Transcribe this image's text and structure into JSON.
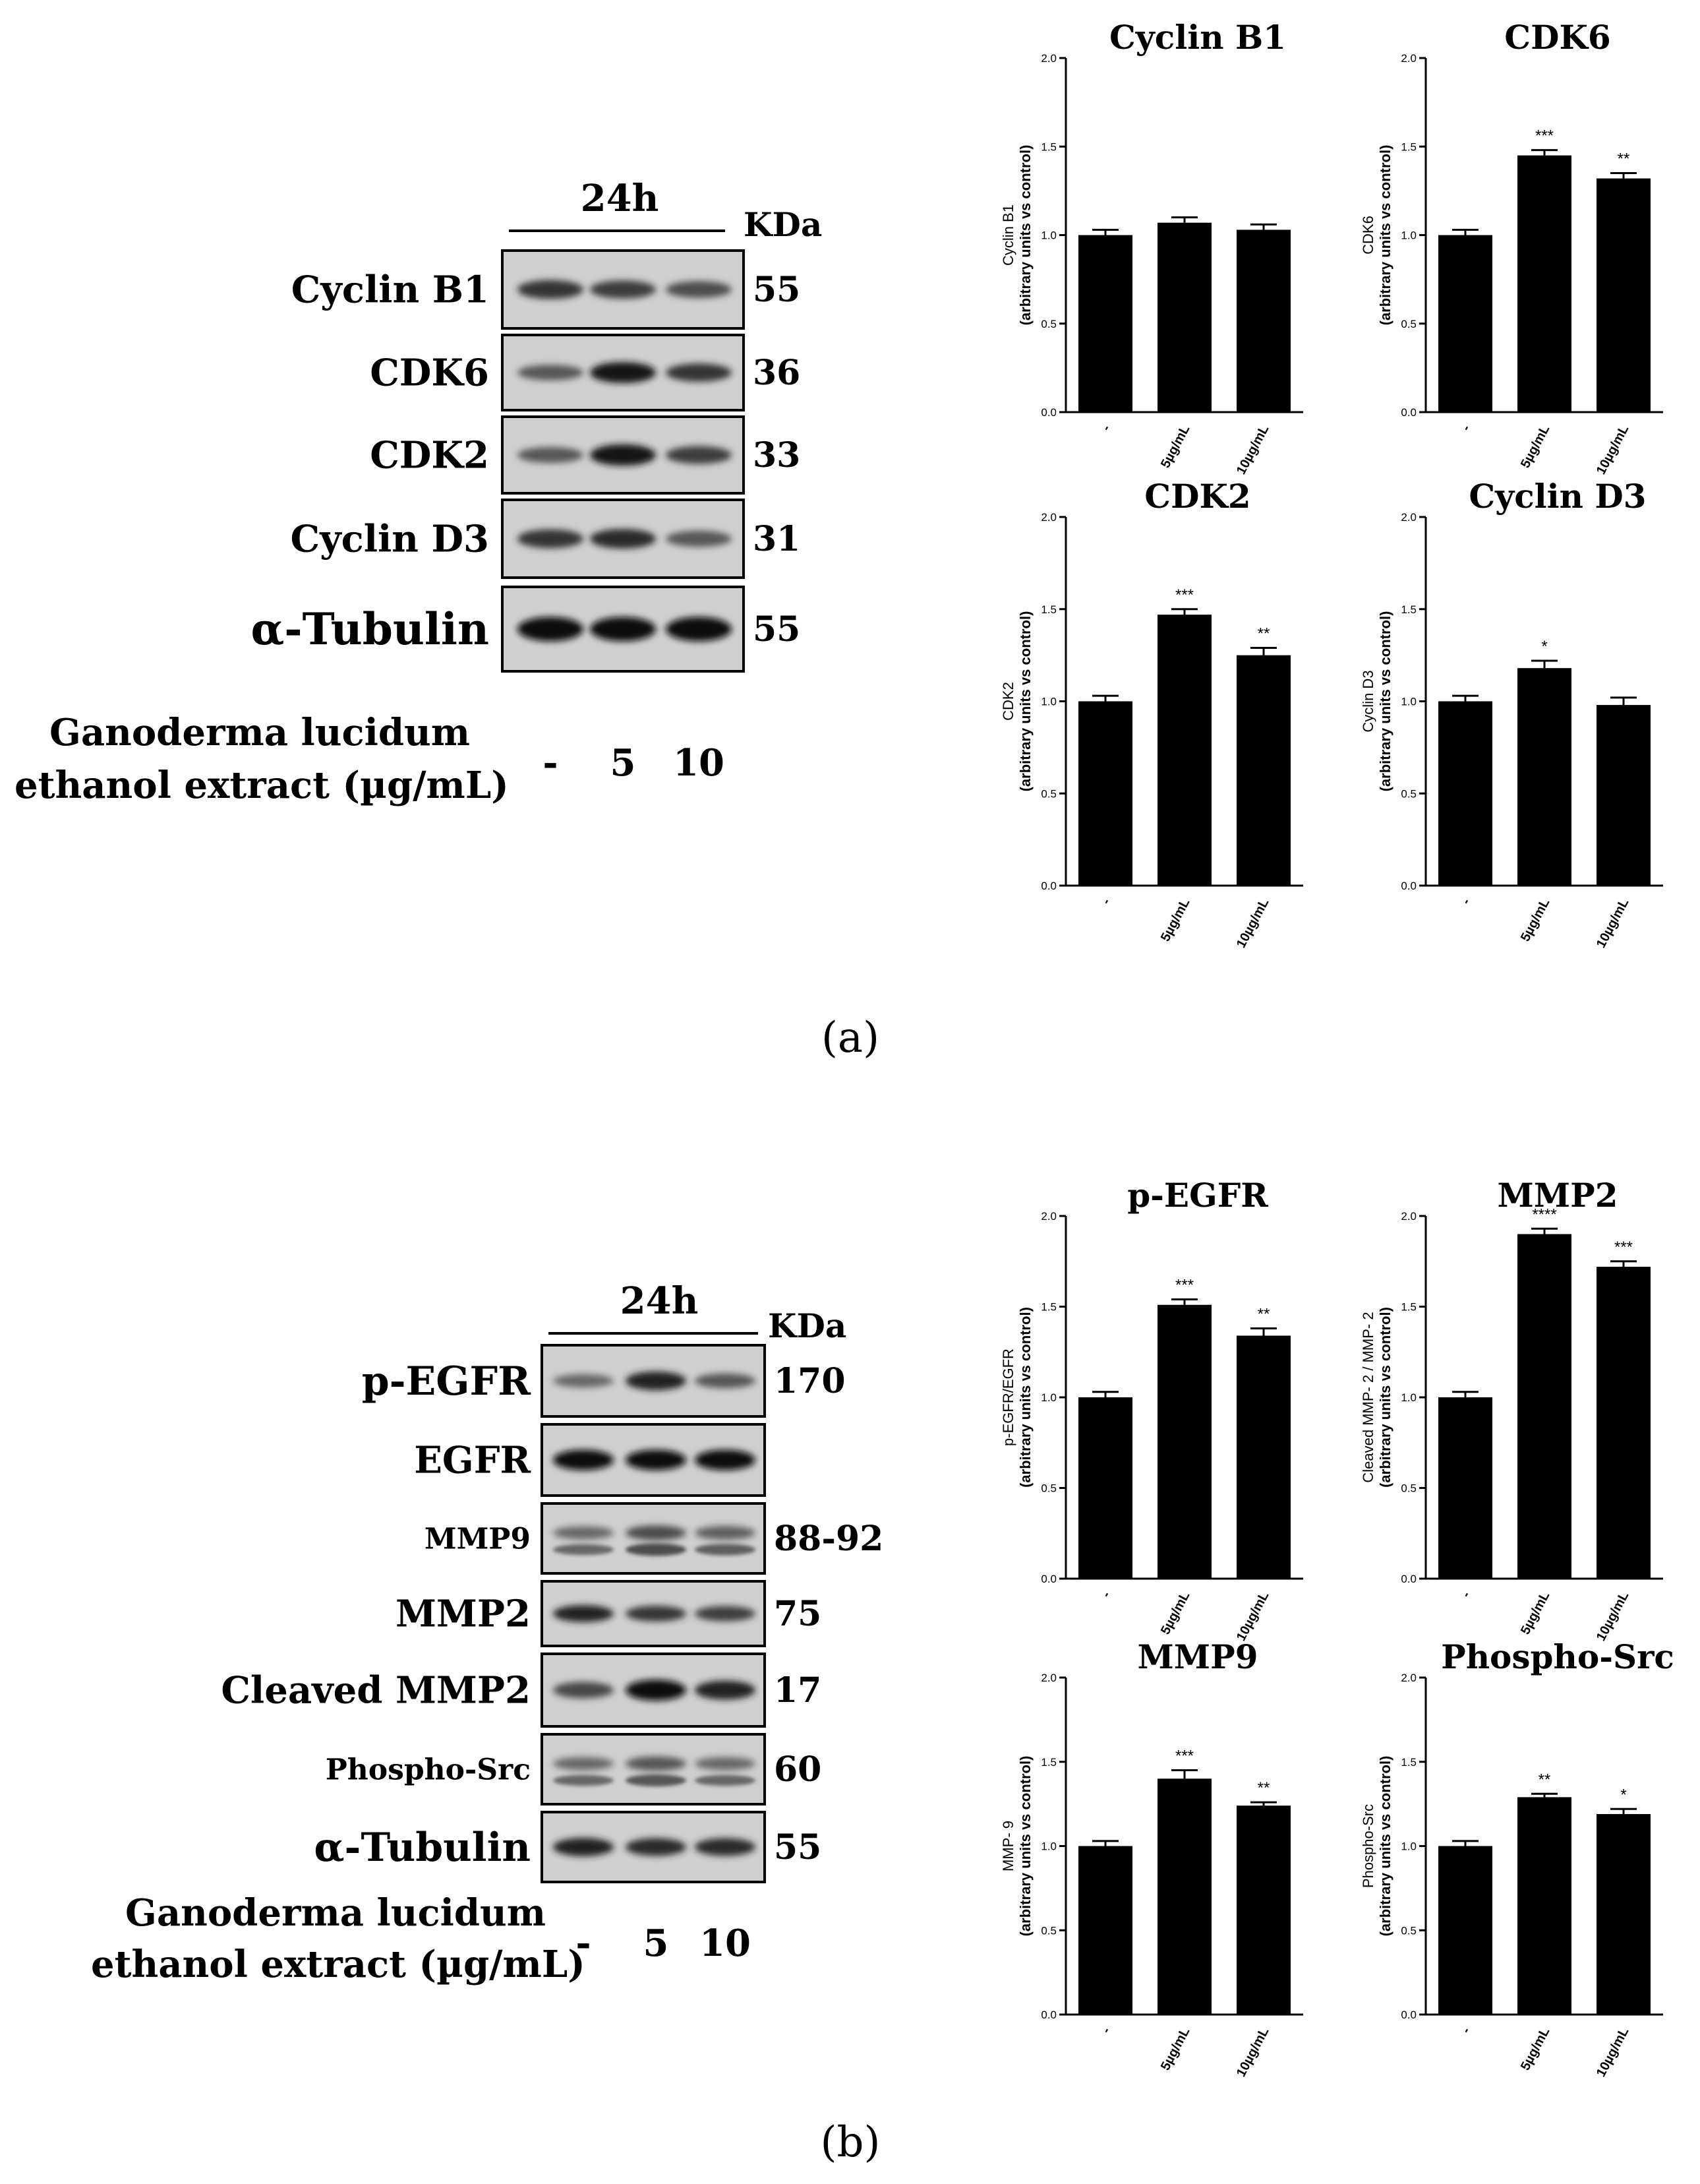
{
  "figure": {
    "panel_a_label": "(a)",
    "panel_b_label": "(b)"
  },
  "blot_a": {
    "time_label": "24h",
    "kda_label": "KDa",
    "treatment_label_line1": "Ganoderma lucidum",
    "treatment_label_line2": "ethanol extract (µg/mL)",
    "lanes": [
      "-",
      "5",
      "10"
    ],
    "rows": [
      {
        "label": "Cyclin B1",
        "kda": "55",
        "intensity": [
          0.75,
          0.7,
          0.6
        ],
        "double": false
      },
      {
        "label": "CDK6",
        "kda": "36",
        "intensity": [
          0.55,
          0.95,
          0.75
        ],
        "double": false
      },
      {
        "label": "CDK2",
        "kda": "33",
        "intensity": [
          0.55,
          0.95,
          0.7
        ],
        "double": false
      },
      {
        "label": "Cyclin D3",
        "kda": "31",
        "intensity": [
          0.75,
          0.8,
          0.55
        ],
        "double": false
      },
      {
        "label": "α-Tubulin",
        "kda": "55",
        "intensity": [
          1.0,
          1.0,
          1.0
        ],
        "double": false
      }
    ]
  },
  "blot_b": {
    "time_label": "24h",
    "kda_label": "KDa",
    "treatment_label_line1": "Ganoderma lucidum",
    "treatment_label_line2": "ethanol extract (µg/mL)",
    "lanes": [
      "-",
      "5",
      "10"
    ],
    "rows": [
      {
        "label": "p-EGFR",
        "kda": "170",
        "intensity": [
          0.45,
          0.85,
          0.55
        ],
        "double": false
      },
      {
        "label": "EGFR",
        "kda": "",
        "intensity": [
          1.0,
          1.0,
          1.0
        ],
        "double": false
      },
      {
        "label": "MMP9",
        "kda": "88-92",
        "intensity": [
          0.45,
          0.6,
          0.5
        ],
        "double": true
      },
      {
        "label": "MMP2",
        "kda": "75",
        "intensity": [
          0.85,
          0.75,
          0.7
        ],
        "double": false
      },
      {
        "label": "Cleaved MMP2",
        "kda": "17",
        "intensity": [
          0.65,
          1.0,
          0.85
        ],
        "double": false
      },
      {
        "label": "Phospho-Src",
        "kda": "60",
        "intensity": [
          0.45,
          0.55,
          0.45
        ],
        "double": true
      },
      {
        "label": "α-Tubulin",
        "kda": "55",
        "intensity": [
          0.85,
          0.8,
          0.8
        ],
        "double": false
      }
    ]
  },
  "chart_data": [
    {
      "type": "bar",
      "title": "Cyclin B1",
      "ylabel_line1": "Cyclin B1",
      "ylabel_line2": "(arbitrary units vs control)",
      "categories": [
        "-",
        "5µg/mL",
        "10µg/mL"
      ],
      "values": [
        1.0,
        1.07,
        1.03
      ],
      "errors": [
        0.03,
        0.03,
        0.03
      ],
      "significance": [
        "",
        "",
        ""
      ],
      "ylim": [
        0,
        2.0
      ],
      "yticks": [
        "0.0",
        "0.5",
        "1.0",
        "1.5",
        "2.0"
      ],
      "grid": false
    },
    {
      "type": "bar",
      "title": "CDK6",
      "ylabel_line1": "CDK6",
      "ylabel_line2": "(arbitrary units vs control)",
      "categories": [
        "-",
        "5µg/mL",
        "10µg/mL"
      ],
      "values": [
        1.0,
        1.45,
        1.32
      ],
      "errors": [
        0.03,
        0.03,
        0.03
      ],
      "significance": [
        "",
        "***",
        "**"
      ],
      "ylim": [
        0,
        2.0
      ],
      "yticks": [
        "0.0",
        "0.5",
        "1.0",
        "1.5",
        "2.0"
      ],
      "grid": false
    },
    {
      "type": "bar",
      "title": "CDK2",
      "ylabel_line1": "CDK2",
      "ylabel_line2": "(arbitrary units vs control)",
      "categories": [
        "-",
        "5µg/mL",
        "10µg/mL"
      ],
      "values": [
        1.0,
        1.47,
        1.25
      ],
      "errors": [
        0.03,
        0.03,
        0.04
      ],
      "significance": [
        "",
        "***",
        "**"
      ],
      "ylim": [
        0,
        2.0
      ],
      "yticks": [
        "0.0",
        "0.5",
        "1.0",
        "1.5",
        "2.0"
      ],
      "grid": false
    },
    {
      "type": "bar",
      "title": "Cyclin D3",
      "ylabel_line1": "Cyclin D3",
      "ylabel_line2": "(arbitrary units vs control)",
      "categories": [
        "-",
        "5µg/mL",
        "10µg/mL"
      ],
      "values": [
        1.0,
        1.18,
        0.98
      ],
      "errors": [
        0.03,
        0.04,
        0.04
      ],
      "significance": [
        "",
        "*",
        ""
      ],
      "ylim": [
        0,
        2.0
      ],
      "yticks": [
        "0.0",
        "0.5",
        "1.0",
        "1.5",
        "2.0"
      ],
      "grid": false
    },
    {
      "type": "bar",
      "title": "p-EGFR",
      "ylabel_line1": "p-EGFR/EGFR",
      "ylabel_line2": "(arbitrary units vs control)",
      "categories": [
        "-",
        "5µg/mL",
        "10µg/mL"
      ],
      "values": [
        1.0,
        1.51,
        1.34
      ],
      "errors": [
        0.03,
        0.03,
        0.04
      ],
      "significance": [
        "",
        "***",
        "**"
      ],
      "ylim": [
        0,
        2.0
      ],
      "yticks": [
        "0.0",
        "0.5",
        "1.0",
        "1.5",
        "2.0"
      ],
      "grid": false
    },
    {
      "type": "bar",
      "title": "MMP2",
      "ylabel_line1": "Cleaved MMP- 2 / MMP- 2",
      "ylabel_line2": "(arbitrary units vs control)",
      "categories": [
        "-",
        "5µg/mL",
        "10µg/mL"
      ],
      "values": [
        1.0,
        1.9,
        1.72
      ],
      "errors": [
        0.03,
        0.03,
        0.03
      ],
      "significance": [
        "",
        "****",
        "***"
      ],
      "ylim": [
        0,
        2.0
      ],
      "yticks": [
        "0.0",
        "0.5",
        "1.0",
        "1.5",
        "2.0"
      ],
      "grid": false
    },
    {
      "type": "bar",
      "title": "MMP9",
      "ylabel_line1": "MMP- 9",
      "ylabel_line2": "(arbitrary units vs control)",
      "categories": [
        "-",
        "5µg/mL",
        "10µg/mL"
      ],
      "values": [
        1.0,
        1.4,
        1.24
      ],
      "errors": [
        0.03,
        0.05,
        0.02
      ],
      "significance": [
        "",
        "***",
        "**"
      ],
      "ylim": [
        0,
        2.0
      ],
      "yticks": [
        "0.0",
        "0.5",
        "1.0",
        "1.5",
        "2.0"
      ],
      "grid": false
    },
    {
      "type": "bar",
      "title": "Phospho-Src",
      "ylabel_line1": "Phospho-Src",
      "ylabel_line2": "(arbitrary units vs control)",
      "categories": [
        "-",
        "5µg/mL",
        "10µg/mL"
      ],
      "values": [
        1.0,
        1.29,
        1.19
      ],
      "errors": [
        0.03,
        0.02,
        0.03
      ],
      "significance": [
        "",
        "**",
        "*"
      ],
      "ylim": [
        0,
        2.0
      ],
      "yticks": [
        "0.0",
        "0.5",
        "1.0",
        "1.5",
        "2.0"
      ],
      "grid": false
    }
  ]
}
